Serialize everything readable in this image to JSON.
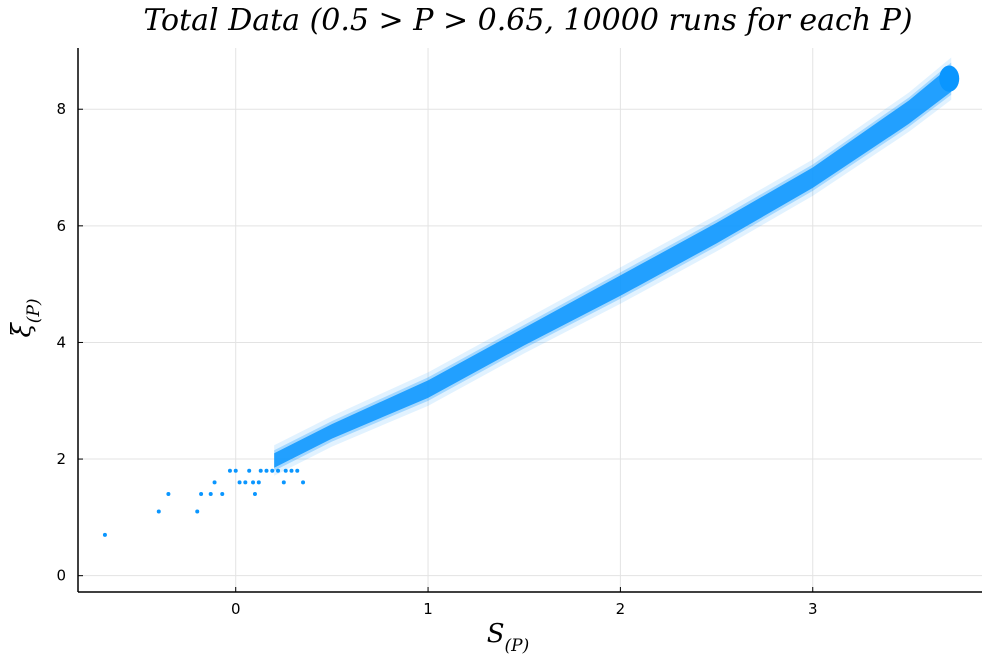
{
  "chart_data": {
    "type": "scatter",
    "title": "Total Data (0.5 > P > 0.65, 10000 runs for each P)",
    "xlabel": "S",
    "xlabel_sub": "(P)",
    "ylabel": "ξ",
    "ylabel_sub": "(P)",
    "xlim": [
      -0.82,
      3.88
    ],
    "ylim": [
      -0.28,
      9.05
    ],
    "xticks": [
      0,
      1,
      2,
      3
    ],
    "yticks": [
      0,
      2,
      4,
      6,
      8
    ],
    "grid": true,
    "legend": "none",
    "color": "#0a96ff",
    "dense_band": [
      [
        0.2,
        1.85,
        2.1
      ],
      [
        0.5,
        2.35,
        2.6
      ],
      [
        1.0,
        3.05,
        3.35
      ],
      [
        1.5,
        3.95,
        4.25
      ],
      [
        2.0,
        4.8,
        5.15
      ],
      [
        2.5,
        5.7,
        6.05
      ],
      [
        3.0,
        6.65,
        7.0
      ],
      [
        3.5,
        7.75,
        8.15
      ],
      [
        3.72,
        8.3,
        8.75
      ]
    ],
    "points": [
      {
        "x": -0.68,
        "y": 0.7
      },
      {
        "x": -0.4,
        "y": 1.1
      },
      {
        "x": -0.35,
        "y": 1.4
      },
      {
        "x": -0.2,
        "y": 1.1
      },
      {
        "x": -0.18,
        "y": 1.4
      },
      {
        "x": -0.13,
        "y": 1.4
      },
      {
        "x": -0.11,
        "y": 1.6
      },
      {
        "x": -0.07,
        "y": 1.4
      },
      {
        "x": -0.03,
        "y": 1.8
      },
      {
        "x": 0.0,
        "y": 1.8
      },
      {
        "x": 0.02,
        "y": 1.6
      },
      {
        "x": 0.05,
        "y": 1.6
      },
      {
        "x": 0.07,
        "y": 1.8
      },
      {
        "x": 0.09,
        "y": 1.6
      },
      {
        "x": 0.1,
        "y": 1.4
      },
      {
        "x": 0.12,
        "y": 1.6
      },
      {
        "x": 0.13,
        "y": 1.8
      },
      {
        "x": 0.16,
        "y": 1.8
      },
      {
        "x": 0.19,
        "y": 1.8
      },
      {
        "x": 0.22,
        "y": 1.8
      },
      {
        "x": 0.25,
        "y": 1.6
      },
      {
        "x": 0.26,
        "y": 1.8
      },
      {
        "x": 0.29,
        "y": 1.8
      },
      {
        "x": 0.32,
        "y": 1.8
      },
      {
        "x": 0.35,
        "y": 1.6
      }
    ]
  }
}
